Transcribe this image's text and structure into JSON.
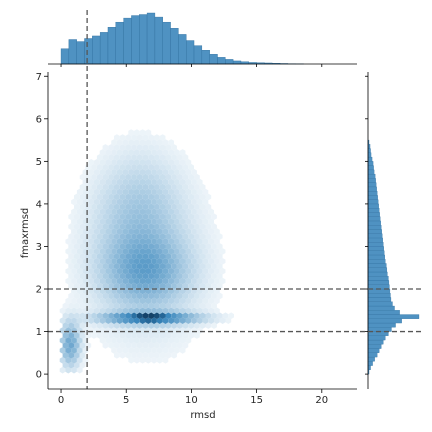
{
  "chart_data": {
    "type": "heatmap",
    "subtype": "joint hexbin with marginal histograms",
    "xlabel": "rmsd",
    "ylabel": "fmaxrmsd",
    "xlim": [
      -1,
      22.7
    ],
    "ylim": [
      -0.35,
      7.1
    ],
    "xticks": [
      0,
      5,
      10,
      15,
      20
    ],
    "yticks": [
      0,
      1,
      2,
      3,
      4,
      5,
      6,
      7
    ],
    "grid": false,
    "legend": "none",
    "color": "#1f77b4",
    "reference_lines": {
      "vertical_x": [
        2
      ],
      "horizontal_y": [
        1,
        2
      ],
      "style": "dashed",
      "color": "#555555"
    },
    "density_modes": [
      {
        "x": 6.8,
        "y": 1.32,
        "weight": 1.0
      },
      {
        "x": 0.7,
        "y": 0.7,
        "weight": 0.55
      },
      {
        "x": 6.5,
        "y": 2.4,
        "weight": 0.45
      },
      {
        "x": 6.0,
        "y": 3.7,
        "weight": 0.25
      }
    ],
    "x_marginal": {
      "bin_centers": [
        0.3,
        0.9,
        1.5,
        2.1,
        2.7,
        3.3,
        3.9,
        4.5,
        5.1,
        5.7,
        6.3,
        6.9,
        7.5,
        8.1,
        8.7,
        9.3,
        9.9,
        10.5,
        11.1,
        11.7,
        12.3,
        12.9,
        13.5,
        14.1,
        14.7,
        15.3,
        15.9,
        16.5,
        17.1,
        17.7,
        18.3
      ],
      "heights": [
        0.3,
        0.48,
        0.44,
        0.5,
        0.55,
        0.62,
        0.72,
        0.82,
        0.9,
        0.95,
        0.97,
        1.0,
        0.92,
        0.82,
        0.7,
        0.58,
        0.46,
        0.36,
        0.27,
        0.19,
        0.13,
        0.09,
        0.06,
        0.045,
        0.03,
        0.025,
        0.02,
        0.015,
        0.01,
        0.006,
        0.003
      ]
    },
    "y_marginal": {
      "bin_centers": [
        0.05,
        0.15,
        0.25,
        0.35,
        0.45,
        0.55,
        0.65,
        0.75,
        0.85,
        0.95,
        1.05,
        1.15,
        1.25,
        1.35,
        1.45,
        1.55,
        1.65,
        1.75,
        1.85,
        1.95,
        2.05,
        2.15,
        2.25,
        2.35,
        2.45,
        2.55,
        2.65,
        2.75,
        2.85,
        2.95,
        3.05,
        3.15,
        3.25,
        3.35,
        3.45,
        3.55,
        3.65,
        3.75,
        3.85,
        3.95,
        4.05,
        4.15,
        4.25,
        4.35,
        4.45,
        4.55,
        4.65,
        4.75,
        4.85,
        4.95,
        5.05,
        5.15,
        5.25,
        5.35,
        5.45
      ],
      "heights": [
        0.02,
        0.05,
        0.09,
        0.13,
        0.18,
        0.22,
        0.26,
        0.3,
        0.34,
        0.4,
        0.46,
        0.54,
        0.66,
        1.0,
        0.62,
        0.52,
        0.48,
        0.45,
        0.44,
        0.43,
        0.42,
        0.41,
        0.4,
        0.38,
        0.37,
        0.36,
        0.34,
        0.33,
        0.32,
        0.31,
        0.3,
        0.29,
        0.28,
        0.27,
        0.26,
        0.25,
        0.24,
        0.23,
        0.22,
        0.21,
        0.2,
        0.19,
        0.18,
        0.17,
        0.16,
        0.15,
        0.14,
        0.12,
        0.11,
        0.1,
        0.08,
        0.06,
        0.05,
        0.04,
        0.02
      ]
    }
  }
}
